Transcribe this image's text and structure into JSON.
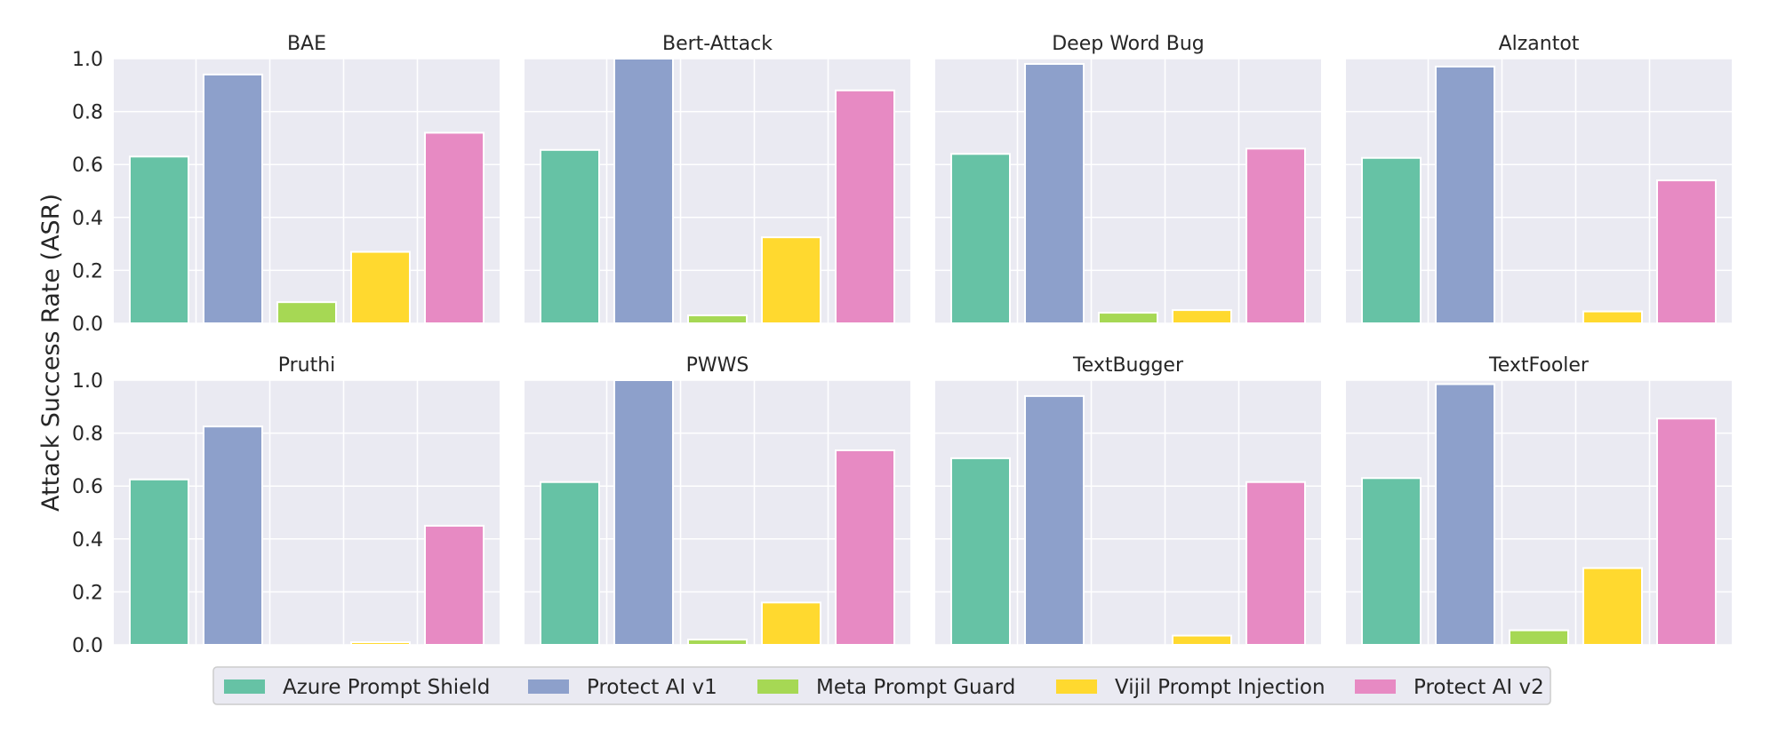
{
  "chart_data": {
    "type": "bar",
    "ylabel": "Attack Success Rate (ASR)",
    "ylim": [
      0,
      1
    ],
    "yticks": [
      "0.0",
      "0.2",
      "0.4",
      "0.6",
      "0.8",
      "1.0"
    ],
    "grid": true,
    "legend_placement": "bottom-center",
    "series_names": [
      "Azure Prompt Shield",
      "Protect AI v1",
      "Meta Prompt Guard",
      "Vijil Prompt Injection",
      "Protect AI v2"
    ],
    "colors": [
      "#66C2A5",
      "#8DA0CB",
      "#A6D854",
      "#FFD92F",
      "#E78AC3"
    ],
    "panels": [
      {
        "title": "BAE",
        "values": [
          0.63,
          0.94,
          0.08,
          0.27,
          0.72
        ]
      },
      {
        "title": "Bert-Attack",
        "values": [
          0.655,
          1.0,
          0.03,
          0.325,
          0.88
        ]
      },
      {
        "title": "Deep Word Bug",
        "values": [
          0.64,
          0.98,
          0.04,
          0.05,
          0.66
        ]
      },
      {
        "title": "Alzantot",
        "values": [
          0.625,
          0.97,
          0.0,
          0.045,
          0.54
        ]
      },
      {
        "title": "Pruthi",
        "values": [
          0.625,
          0.825,
          0.0,
          0.01,
          0.45
        ]
      },
      {
        "title": "PWWS",
        "values": [
          0.615,
          1.0,
          0.02,
          0.16,
          0.735
        ]
      },
      {
        "title": "TextBugger",
        "values": [
          0.705,
          0.94,
          0.0,
          0.035,
          0.615
        ]
      },
      {
        "title": "TextFooler",
        "values": [
          0.63,
          0.985,
          0.055,
          0.29,
          0.855
        ]
      }
    ]
  }
}
